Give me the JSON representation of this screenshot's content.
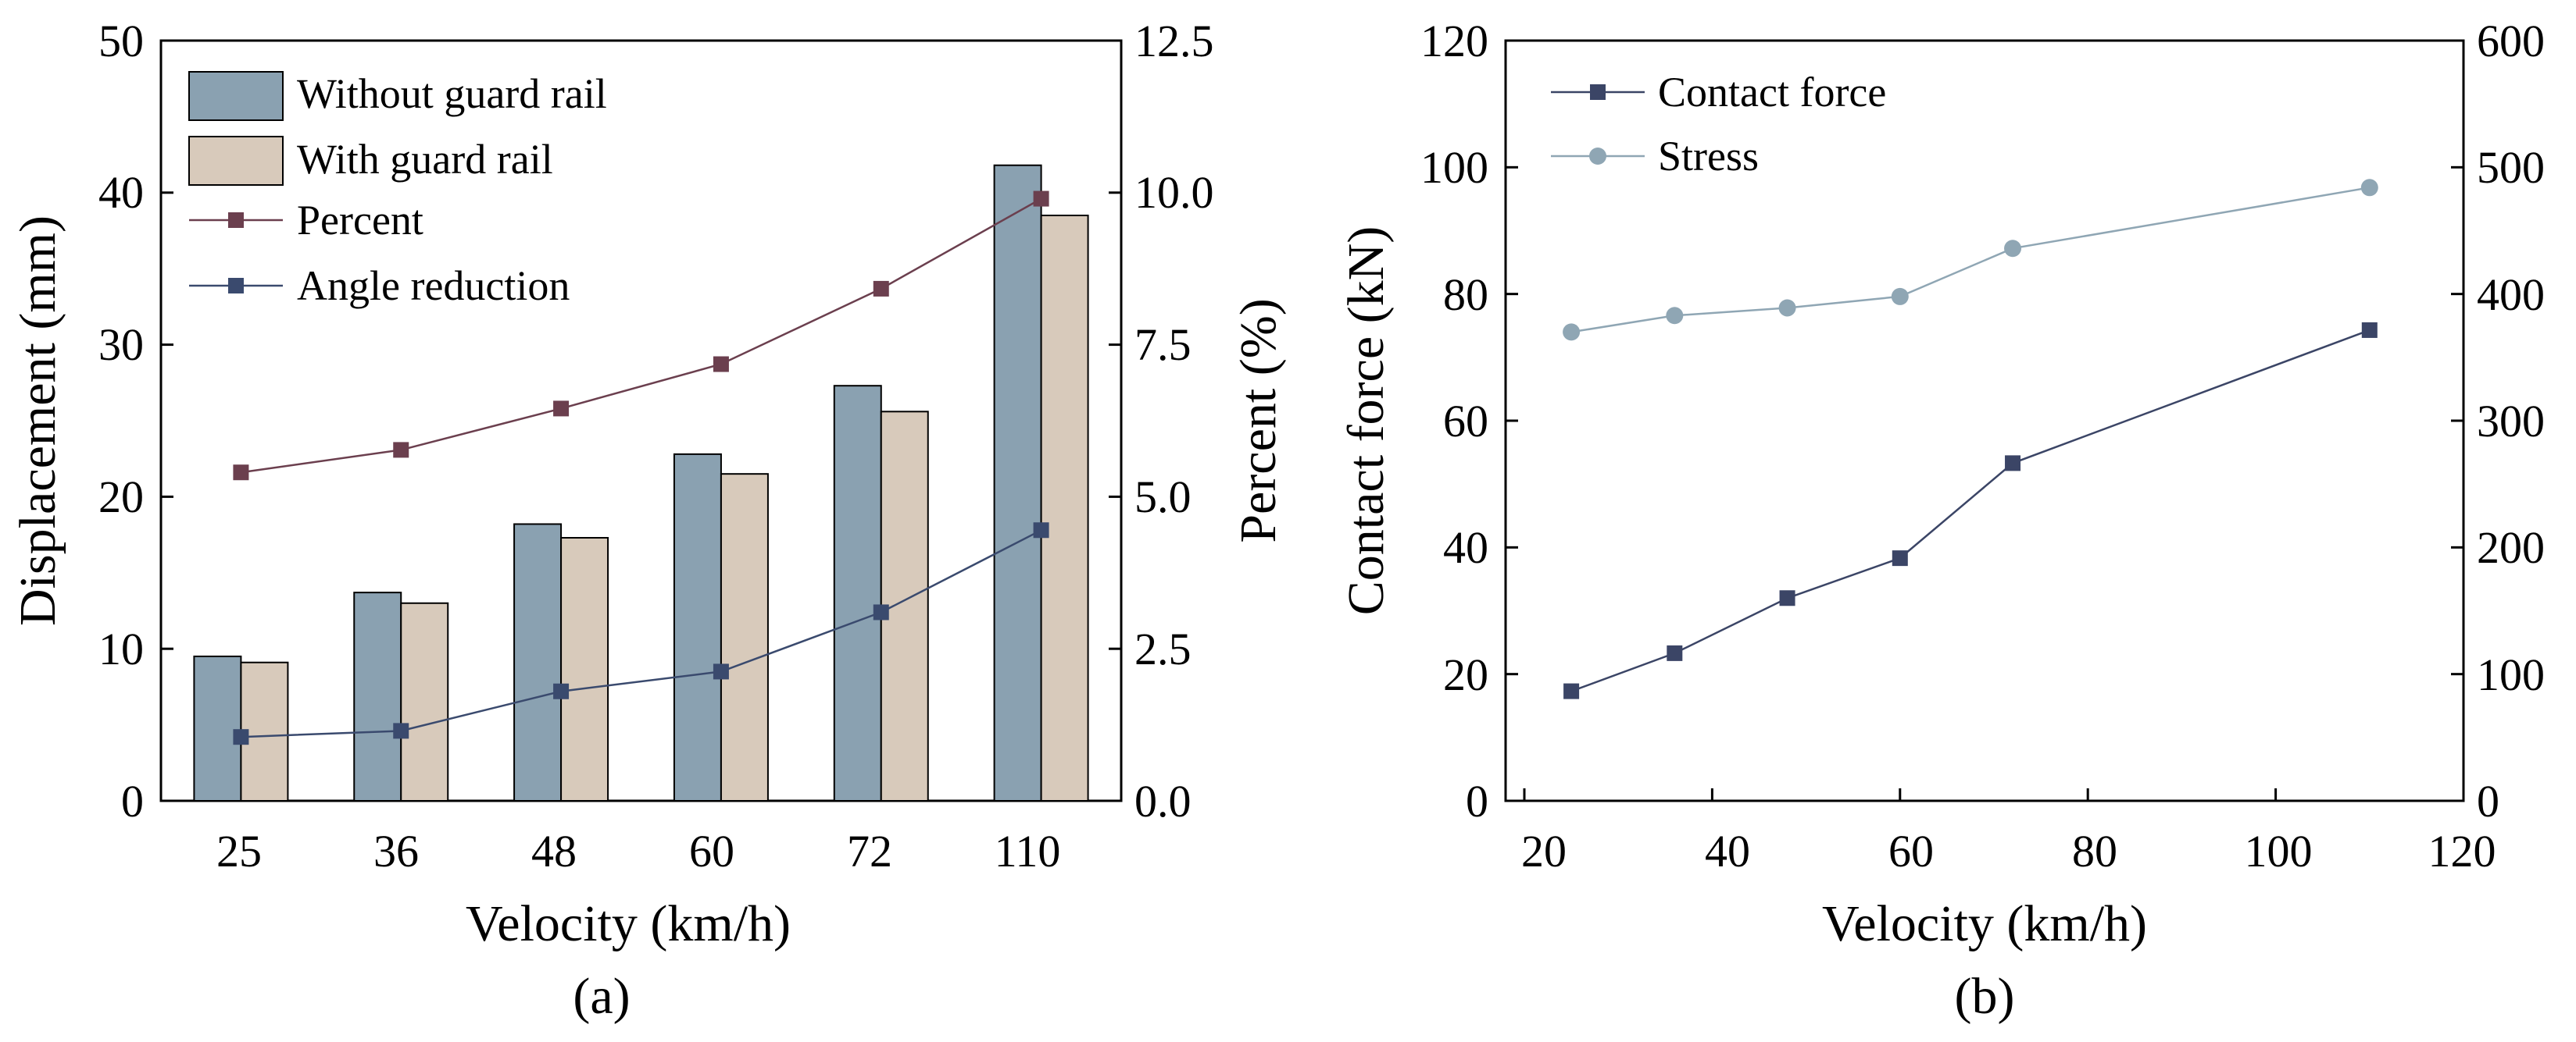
{
  "colors": {
    "bar_without": "#8aa1b1",
    "bar_with": "#d8cabb",
    "percent_line": "#6b3f4e",
    "angle_line": "#3a4a6e",
    "contact_line": "#3b4566",
    "stress_line": "#8fa6b4"
  },
  "chart_data": [
    {
      "type": "bar",
      "panel_label": "(a)",
      "categories": [
        "25",
        "36",
        "48",
        "60",
        "72",
        "110"
      ],
      "xlabel": "Velocity (km/h)",
      "ylabel": "Displacement (mm)",
      "y2label": "Percent (%)",
      "ylim": [
        0,
        50
      ],
      "y2lim": [
        0,
        12.5
      ],
      "yticks": [
        "0",
        "10",
        "20",
        "30",
        "40",
        "50"
      ],
      "y2ticks": [
        "0.0",
        "2.5",
        "5.0",
        "7.5",
        "10.0",
        "12.5"
      ],
      "legend_position": "top-left",
      "series": [
        {
          "name": "Without guard rail",
          "kind": "bar",
          "axis": "left",
          "values": [
            9.5,
            13.7,
            18.2,
            22.8,
            27.3,
            41.8
          ]
        },
        {
          "name": "With guard rail",
          "kind": "bar",
          "axis": "left",
          "values": [
            9.1,
            13.0,
            17.3,
            21.5,
            25.6,
            38.5
          ]
        },
        {
          "name": "Percent",
          "kind": "line",
          "axis": "right",
          "marker": "square",
          "values": [
            5.4,
            5.77,
            6.45,
            7.18,
            8.42,
            9.9
          ]
        },
        {
          "name": "Angle reduction",
          "kind": "line",
          "axis": "left",
          "marker": "square",
          "values": [
            4.2,
            4.6,
            7.2,
            8.5,
            12.4,
            17.8
          ]
        }
      ]
    },
    {
      "type": "line",
      "panel_label": "(b)",
      "xlabel": "Velocity (km/h)",
      "ylabel": "Contact force (kN)",
      "xlim": [
        20,
        120
      ],
      "ylim": [
        0,
        120
      ],
      "y2lim": [
        0,
        600
      ],
      "xticks": [
        "20",
        "40",
        "60",
        "80",
        "100",
        "120"
      ],
      "yticks": [
        "0",
        "20",
        "40",
        "60",
        "80",
        "100",
        "120"
      ],
      "y2ticks": [
        "0",
        "100",
        "200",
        "300",
        "400",
        "500",
        "600"
      ],
      "legend_position": "top-left",
      "x": [
        25,
        36,
        48,
        60,
        72,
        110
      ],
      "series": [
        {
          "name": "Contact force",
          "axis": "left",
          "marker": "square",
          "values": [
            17.3,
            23.3,
            32.0,
            38.3,
            53.3,
            74.3
          ]
        },
        {
          "name": "Stress",
          "axis": "right",
          "marker": "circle",
          "values": [
            370,
            383,
            389,
            398,
            436,
            484
          ]
        }
      ]
    }
  ]
}
